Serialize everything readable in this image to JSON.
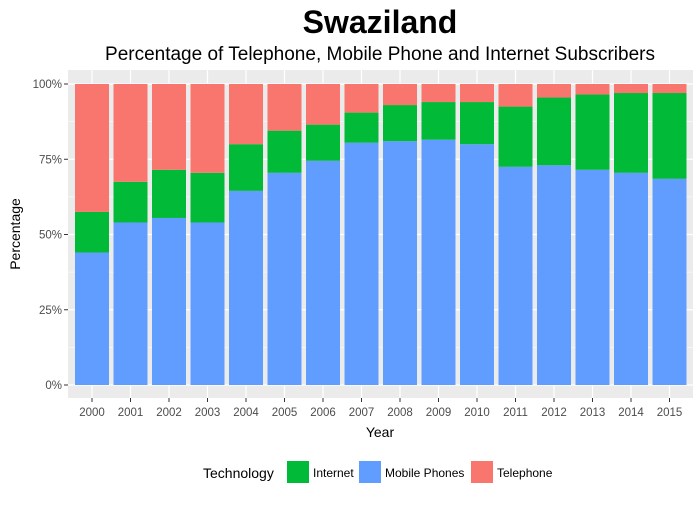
{
  "chart_data": {
    "type": "bar",
    "stacked": true,
    "title": "Swaziland",
    "subtitle": "Percentage of Telephone, Mobile Phone and Internet Subscribers",
    "xlabel": "Year",
    "ylabel": "Percentage",
    "ylim": [
      0,
      1
    ],
    "yticks": [
      "0%",
      "25%",
      "50%",
      "75%",
      "100%"
    ],
    "grid": true,
    "legend_title": "Technology",
    "legend_position": "bottom",
    "categories": [
      "2000",
      "2001",
      "2002",
      "2003",
      "2004",
      "2005",
      "2006",
      "2007",
      "2008",
      "2009",
      "2010",
      "2011",
      "2012",
      "2013",
      "2014",
      "2015"
    ],
    "series": [
      {
        "name": "Mobile Phones",
        "color": "#619CFF",
        "values": [
          0.44,
          0.54,
          0.555,
          0.54,
          0.645,
          0.705,
          0.745,
          0.805,
          0.81,
          0.815,
          0.8,
          0.725,
          0.73,
          0.715,
          0.705,
          0.685
        ]
      },
      {
        "name": "Internet",
        "color": "#00BA38",
        "values": [
          0.135,
          0.135,
          0.16,
          0.165,
          0.155,
          0.14,
          0.12,
          0.1,
          0.12,
          0.125,
          0.14,
          0.2,
          0.225,
          0.25,
          0.265,
          0.285
        ]
      },
      {
        "name": "Telephone",
        "color": "#F8766D",
        "values": [
          0.425,
          0.325,
          0.285,
          0.295,
          0.2,
          0.155,
          0.135,
          0.095,
          0.07,
          0.06,
          0.06,
          0.075,
          0.045,
          0.035,
          0.03,
          0.03
        ]
      }
    ],
    "legend_order": [
      "Internet",
      "Mobile Phones",
      "Telephone"
    ]
  }
}
